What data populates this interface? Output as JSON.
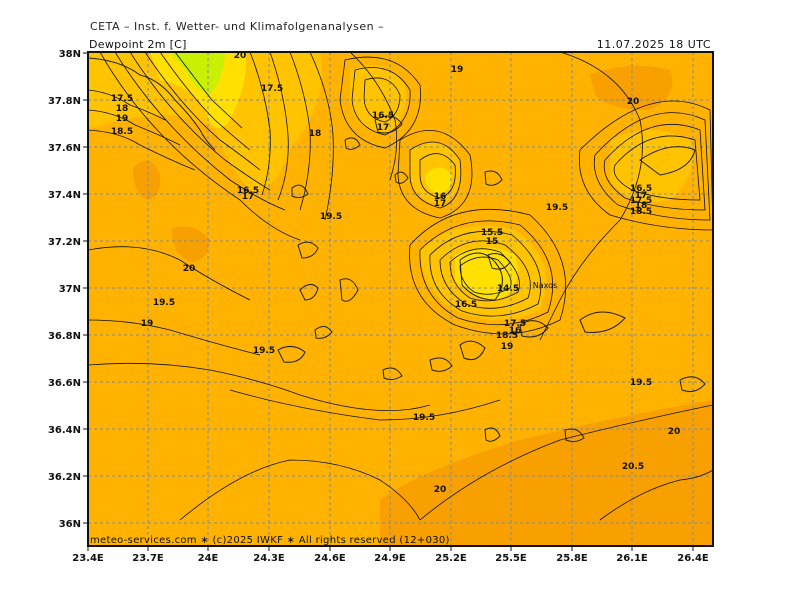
{
  "header": {
    "title": "CETA – Inst. f. Wetter- und Klimafolgenanalysen –",
    "variable": "Dewpoint 2m [C]",
    "valid_time": "11.07.2025 18 UTC"
  },
  "footer": {
    "copyright": "meteo-services.com ∗ (c)2025 IWKF ∗ All rights reserved (12+030)"
  },
  "map": {
    "lon_range": [
      23.4,
      26.5
    ],
    "lat_range": [
      35.9,
      38.0
    ],
    "x_ticks": [
      "23.4E",
      "23.7E",
      "24E",
      "24.3E",
      "24.6E",
      "24.9E",
      "25.2E",
      "25.5E",
      "25.8E",
      "26.1E",
      "26.4E"
    ],
    "y_ticks": [
      "38N",
      "37.8N",
      "37.6N",
      "37.4N",
      "37.2N",
      "37N",
      "36.8N",
      "36.6N",
      "36.4N",
      "36.2N",
      "36N"
    ],
    "place_labels": [
      "Naxos"
    ],
    "contour_labels": [
      "17.5",
      "19",
      "18",
      "17.5",
      "16.5",
      "17",
      "16.5",
      "17",
      "18",
      "18.5",
      "19",
      "19.5",
      "20",
      "19.5",
      "19",
      "20",
      "19.5",
      "16",
      "19.5",
      "17",
      "15.5",
      "15",
      "14.5",
      "16.5",
      "17.5",
      "16",
      "18.5",
      "19",
      "19.5",
      "20",
      "20.5",
      "20",
      "19.5",
      "20",
      "16.5",
      "17",
      "17.5",
      "18",
      "18.5"
    ],
    "colors": {
      "background": "#ffb200",
      "warm": "#f7a000",
      "moist_high": "#ffd000",
      "moist_low": "#ffe000",
      "green_zone": "#c8f000",
      "contour": "#111111",
      "land": "#ffd000"
    }
  }
}
